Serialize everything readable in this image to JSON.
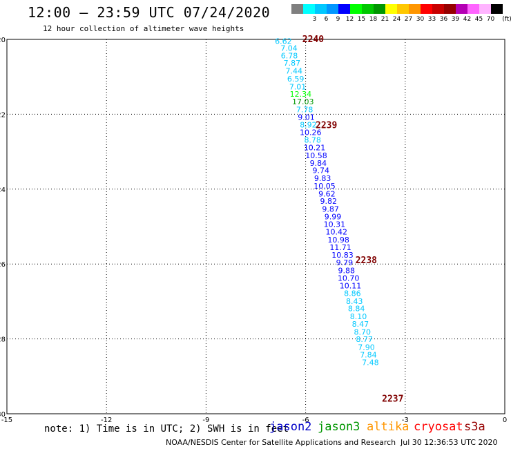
{
  "title": "12:00 – 23:59 UTC 07/24/2020",
  "subtitle": "12 hour collection of altimeter wave heights",
  "colorbar": {
    "unit_label": "(ft)",
    "bins": [
      {
        "label": "",
        "color": "#7f7f7f"
      },
      {
        "label": "3",
        "color": "#00ffff"
      },
      {
        "label": "6",
        "color": "#00c8ff"
      },
      {
        "label": "9",
        "color": "#0096ff"
      },
      {
        "label": "12",
        "color": "#0000ff"
      },
      {
        "label": "15",
        "color": "#00ff00"
      },
      {
        "label": "18",
        "color": "#00c800"
      },
      {
        "label": "21",
        "color": "#009600"
      },
      {
        "label": "24",
        "color": "#ffff00"
      },
      {
        "label": "27",
        "color": "#ffc800"
      },
      {
        "label": "30",
        "color": "#ff9600"
      },
      {
        "label": "33",
        "color": "#ff0000"
      },
      {
        "label": "36",
        "color": "#c80000"
      },
      {
        "label": "39",
        "color": "#960000"
      },
      {
        "label": "42",
        "color": "#b400b4"
      },
      {
        "label": "45",
        "color": "#ff64ff"
      },
      {
        "label": "70",
        "color": "#ffb4ff"
      },
      {
        "label": "",
        "color": "#000000"
      }
    ]
  },
  "note": "note: 1) Time is in UTC; 2) SWH is in feet",
  "legend": [
    {
      "name": "jason2",
      "color": "#0000c8"
    },
    {
      "name": "jason3",
      "color": "#009600"
    },
    {
      "name": "altika",
      "color": "#ff9600"
    },
    {
      "name": "cryosat",
      "color": "#ff0000"
    },
    {
      "name": "s3a",
      "color": "#960000"
    }
  ],
  "footer_left": "NOAA/NESDIS Center for Satellite Applications and Research",
  "footer_right": "Jul 30 12:36:53 UTC 2020",
  "chart_data": {
    "type": "scatter",
    "xlim": [
      -15,
      0
    ],
    "ylim": [
      -30,
      -20
    ],
    "x_ticks": [
      -15,
      -12,
      -9,
      -6,
      -3,
      0
    ],
    "y_ticks": [
      -20,
      -22,
      -24,
      -26,
      -28,
      -30
    ],
    "x_tick_labels": [
      "-15",
      "-12",
      "-9",
      "-6",
      "-3",
      "0"
    ],
    "y_tick_labels": [
      "-20",
      "-22",
      "-24",
      "-26",
      "-28",
      "-30"
    ],
    "grid": true,
    "points": [
      {
        "x": -6.67,
        "y": -20.05,
        "label": "6.62",
        "color": "#00c8ff"
      },
      {
        "x": -6.5,
        "y": -20.23,
        "label": "7.04",
        "color": "#00c8ff"
      },
      {
        "x": -6.49,
        "y": -20.43,
        "label": "6.78",
        "color": "#00c8ff"
      },
      {
        "x": -6.41,
        "y": -20.63,
        "label": "7.87",
        "color": "#00c8ff"
      },
      {
        "x": -6.35,
        "y": -20.84,
        "label": "7.44",
        "color": "#00c8ff"
      },
      {
        "x": -6.3,
        "y": -21.05,
        "label": "6.59",
        "color": "#00c8ff"
      },
      {
        "x": -6.24,
        "y": -21.26,
        "label": "7.01",
        "color": "#00c8ff"
      },
      {
        "x": -6.15,
        "y": -21.46,
        "label": "12.34",
        "color": "#00ff00"
      },
      {
        "x": -6.08,
        "y": -21.66,
        "label": "17.03",
        "color": "#009600"
      },
      {
        "x": -6.03,
        "y": -21.87,
        "label": "7.78",
        "color": "#00c8ff"
      },
      {
        "x": -5.98,
        "y": -22.08,
        "label": "9.01",
        "color": "#0000ff"
      },
      {
        "x": -5.92,
        "y": -22.28,
        "label": "8.92",
        "color": "#00c8ff"
      },
      {
        "x": -5.85,
        "y": -22.48,
        "label": "10.26",
        "color": "#0000ff"
      },
      {
        "x": -5.79,
        "y": -22.68,
        "label": "8.78",
        "color": "#00c8ff"
      },
      {
        "x": -5.73,
        "y": -22.89,
        "label": "10.21",
        "color": "#0000ff"
      },
      {
        "x": -5.68,
        "y": -23.1,
        "label": "10.58",
        "color": "#0000ff"
      },
      {
        "x": -5.62,
        "y": -23.3,
        "label": "9.84",
        "color": "#0000ff"
      },
      {
        "x": -5.54,
        "y": -23.5,
        "label": "9.74",
        "color": "#0000ff"
      },
      {
        "x": -5.49,
        "y": -23.71,
        "label": "9.83",
        "color": "#0000ff"
      },
      {
        "x": -5.43,
        "y": -23.91,
        "label": "10.05",
        "color": "#0000ff"
      },
      {
        "x": -5.36,
        "y": -24.12,
        "label": "9.62",
        "color": "#0000ff"
      },
      {
        "x": -5.31,
        "y": -24.32,
        "label": "9.82",
        "color": "#0000ff"
      },
      {
        "x": -5.25,
        "y": -24.53,
        "label": "9.87",
        "color": "#0000ff"
      },
      {
        "x": -5.18,
        "y": -24.73,
        "label": "9.99",
        "color": "#0000ff"
      },
      {
        "x": -5.13,
        "y": -24.94,
        "label": "10.31",
        "color": "#0000ff"
      },
      {
        "x": -5.07,
        "y": -25.14,
        "label": "10.42",
        "color": "#0000ff"
      },
      {
        "x": -5.01,
        "y": -25.35,
        "label": "10.98",
        "color": "#0000ff"
      },
      {
        "x": -4.95,
        "y": -25.55,
        "label": "11.71",
        "color": "#0000ff"
      },
      {
        "x": -4.89,
        "y": -25.76,
        "label": "10.83",
        "color": "#0000ff"
      },
      {
        "x": -4.83,
        "y": -25.96,
        "label": "9.79",
        "color": "#0000ff"
      },
      {
        "x": -4.77,
        "y": -26.17,
        "label": "9.88",
        "color": "#0000ff"
      },
      {
        "x": -4.71,
        "y": -26.37,
        "label": "10.70",
        "color": "#0000ff"
      },
      {
        "x": -4.65,
        "y": -26.58,
        "label": "10.11",
        "color": "#0000ff"
      },
      {
        "x": -4.59,
        "y": -26.78,
        "label": "8.86",
        "color": "#00c8ff"
      },
      {
        "x": -4.53,
        "y": -26.99,
        "label": "8.43",
        "color": "#00c8ff"
      },
      {
        "x": -4.47,
        "y": -27.19,
        "label": "8.84",
        "color": "#00c8ff"
      },
      {
        "x": -4.41,
        "y": -27.4,
        "label": "8.10",
        "color": "#00c8ff"
      },
      {
        "x": -4.35,
        "y": -27.6,
        "label": "8.47",
        "color": "#00c8ff"
      },
      {
        "x": -4.29,
        "y": -27.81,
        "label": "8.70",
        "color": "#00c8ff"
      },
      {
        "x": -4.23,
        "y": -28.01,
        "label": "8.77",
        "color": "#00c8ff"
      },
      {
        "x": -4.17,
        "y": -28.22,
        "label": "7.90",
        "color": "#00c8ff"
      },
      {
        "x": -4.11,
        "y": -28.42,
        "label": "7.84",
        "color": "#00c8ff"
      },
      {
        "x": -4.05,
        "y": -28.63,
        "label": "7.48",
        "color": "#00c8ff"
      }
    ],
    "annotations": [
      {
        "x": -6.1,
        "y": -20.0,
        "text": "2240",
        "color": "#800000"
      },
      {
        "x": -5.7,
        "y": -22.3,
        "text": "2239",
        "color": "#800000"
      },
      {
        "x": -4.5,
        "y": -25.9,
        "text": "2238",
        "color": "#800000"
      },
      {
        "x": -3.7,
        "y": -29.6,
        "text": "2237",
        "color": "#800000"
      }
    ]
  }
}
